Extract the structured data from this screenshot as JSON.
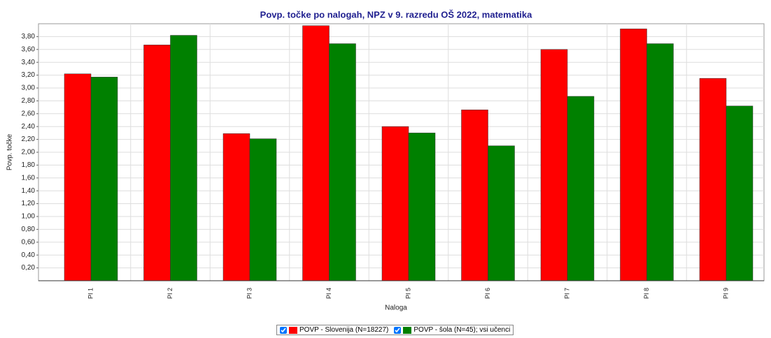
{
  "chart_data": {
    "type": "bar",
    "title": "Povp. točke po nalogah, NPZ v 9. razredu OŠ 2022, matematika",
    "x_label": "Naloga",
    "y_label": "Povp. točke",
    "categories": [
      "PI 1",
      "PI 2",
      "PI 3",
      "PI 4",
      "PI 5",
      "PI 6",
      "PI 7",
      "PI 8",
      "PI 9"
    ],
    "series": [
      {
        "name": "POVP - Slovenija (N=18227)",
        "color": "#ff0000",
        "values": [
          3.22,
          3.67,
          2.29,
          3.97,
          2.4,
          2.66,
          3.6,
          3.92,
          3.15
        ]
      },
      {
        "name": "POVP - šola (N=45); vsi učenci",
        "color": "#008000",
        "values": [
          3.17,
          3.82,
          2.21,
          3.69,
          2.3,
          2.1,
          2.87,
          3.69,
          2.72
        ]
      }
    ],
    "ylim": [
      0,
      4
    ],
    "yticks": [
      {
        "value": 0.2,
        "label": "0,20"
      },
      {
        "value": 0.4,
        "label": "0,40"
      },
      {
        "value": 0.6,
        "label": "0,60"
      },
      {
        "value": 0.8,
        "label": "0,80"
      },
      {
        "value": 1.0,
        "label": "1,00"
      },
      {
        "value": 1.2,
        "label": "1,20"
      },
      {
        "value": 1.4,
        "label": "1,40"
      },
      {
        "value": 1.6,
        "label": "1,60"
      },
      {
        "value": 1.8,
        "label": "1,80"
      },
      {
        "value": 2.0,
        "label": "2,00"
      },
      {
        "value": 2.2,
        "label": "2,20"
      },
      {
        "value": 2.4,
        "label": "2,40"
      },
      {
        "value": 2.6,
        "label": "2,60"
      },
      {
        "value": 2.8,
        "label": "2,80"
      },
      {
        "value": 3.0,
        "label": "3,00"
      },
      {
        "value": 3.2,
        "label": "3,20"
      },
      {
        "value": 3.4,
        "label": "3,40"
      },
      {
        "value": 3.6,
        "label": "3,60"
      },
      {
        "value": 3.8,
        "label": "3,80"
      }
    ],
    "grid": true
  }
}
